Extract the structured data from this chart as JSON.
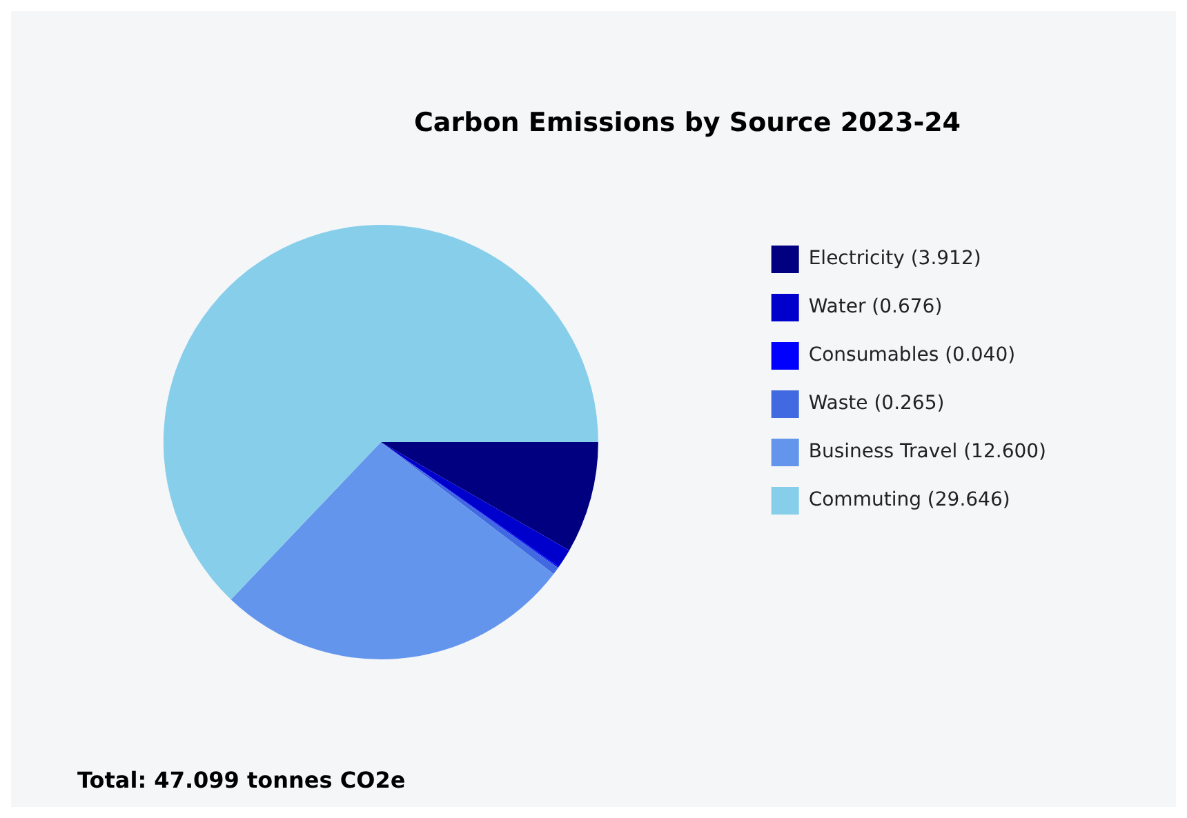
{
  "chart_data": {
    "type": "pie",
    "title": "Carbon Emissions by Source 2023-24",
    "categories": [
      "Electricity (3.912)",
      "Water (0.676)",
      "Consumables (0.040)",
      "Waste (0.265)",
      "Business Travel (12.600)",
      "Commuting (29.646)"
    ],
    "values": [
      3.912,
      0.676,
      0.04,
      0.265,
      12.6,
      29.646
    ],
    "colors": [
      "#000080",
      "#0000cd",
      "#0000ff",
      "#4169e1",
      "#6495ed",
      "#87ceeb"
    ],
    "legend": "right",
    "annotations": [
      "Total: 47.099 tonnes CO2e"
    ]
  }
}
